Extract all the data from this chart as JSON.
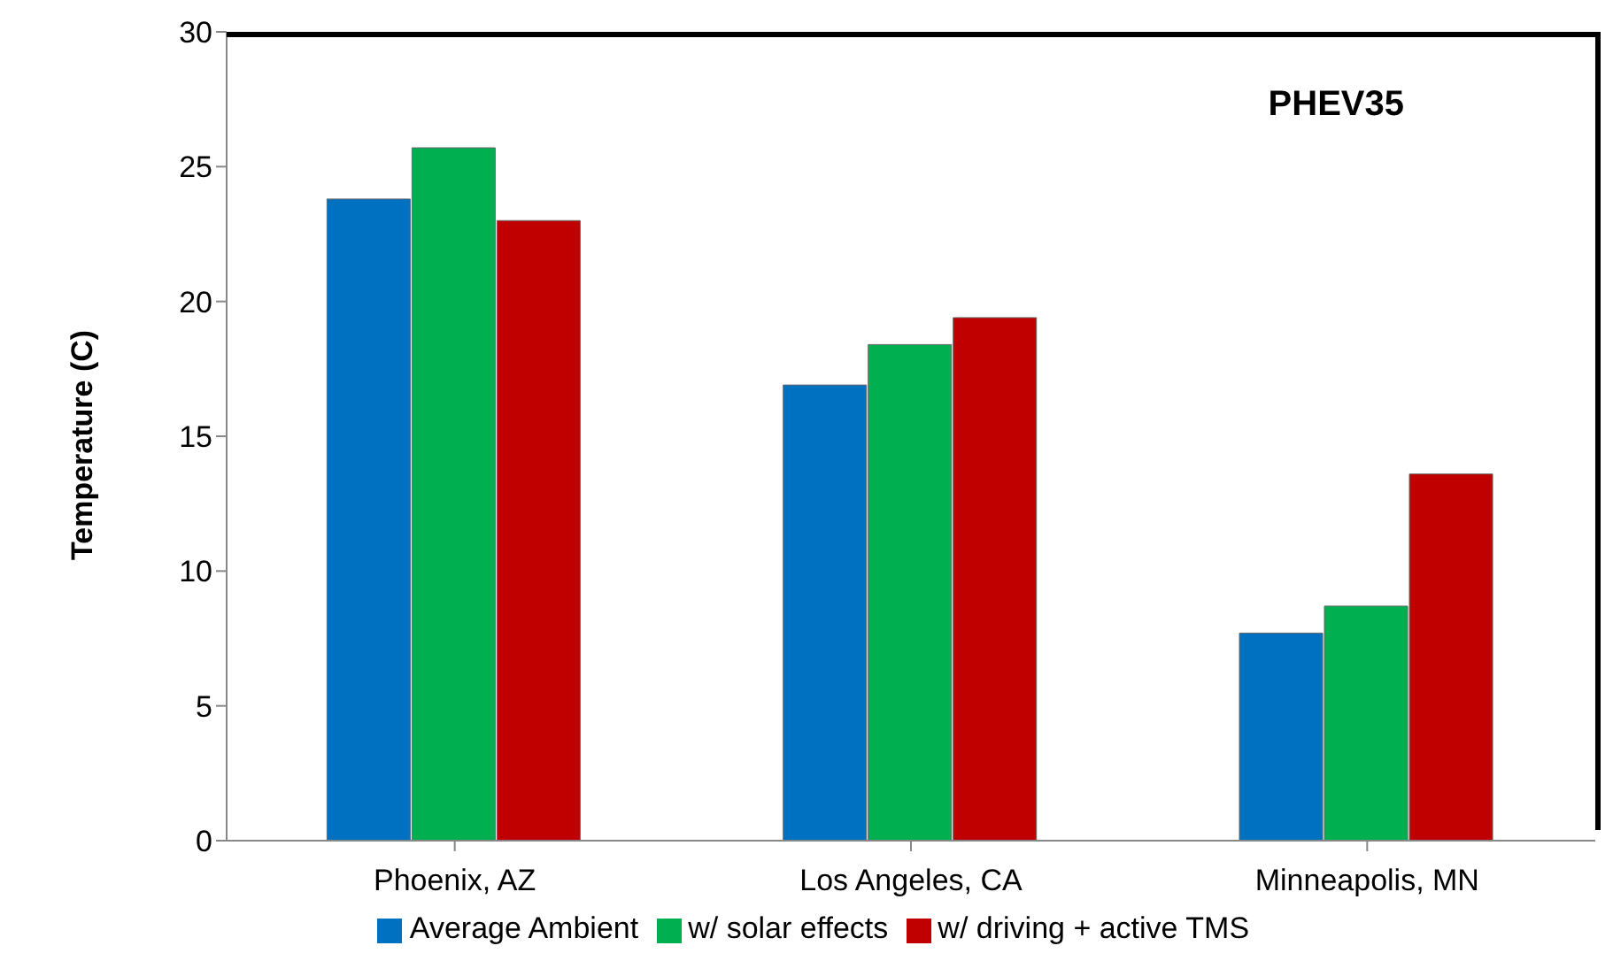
{
  "chart_data": {
    "type": "bar",
    "ylabel": "Temperature (C)",
    "annotations": [
      "PHEV35"
    ],
    "categories": [
      "Phoenix, AZ",
      "Los Angeles, CA",
      "Minneapolis, MN"
    ],
    "series": [
      {
        "name": "Average Ambient",
        "color": "#0070c0",
        "values": [
          23.8,
          16.9,
          7.7
        ]
      },
      {
        "name": "w/ solar effects",
        "color": "#00b050",
        "values": [
          25.7,
          18.4,
          8.7
        ]
      },
      {
        "name": "w/ driving + active TMS",
        "color": "#c00000",
        "values": [
          23.0,
          19.4,
          13.6
        ]
      }
    ],
    "ylim": [
      0,
      30
    ],
    "yticks": [
      0,
      5,
      10,
      15,
      20,
      25,
      30
    ],
    "grid": false,
    "legend": "bottom"
  }
}
